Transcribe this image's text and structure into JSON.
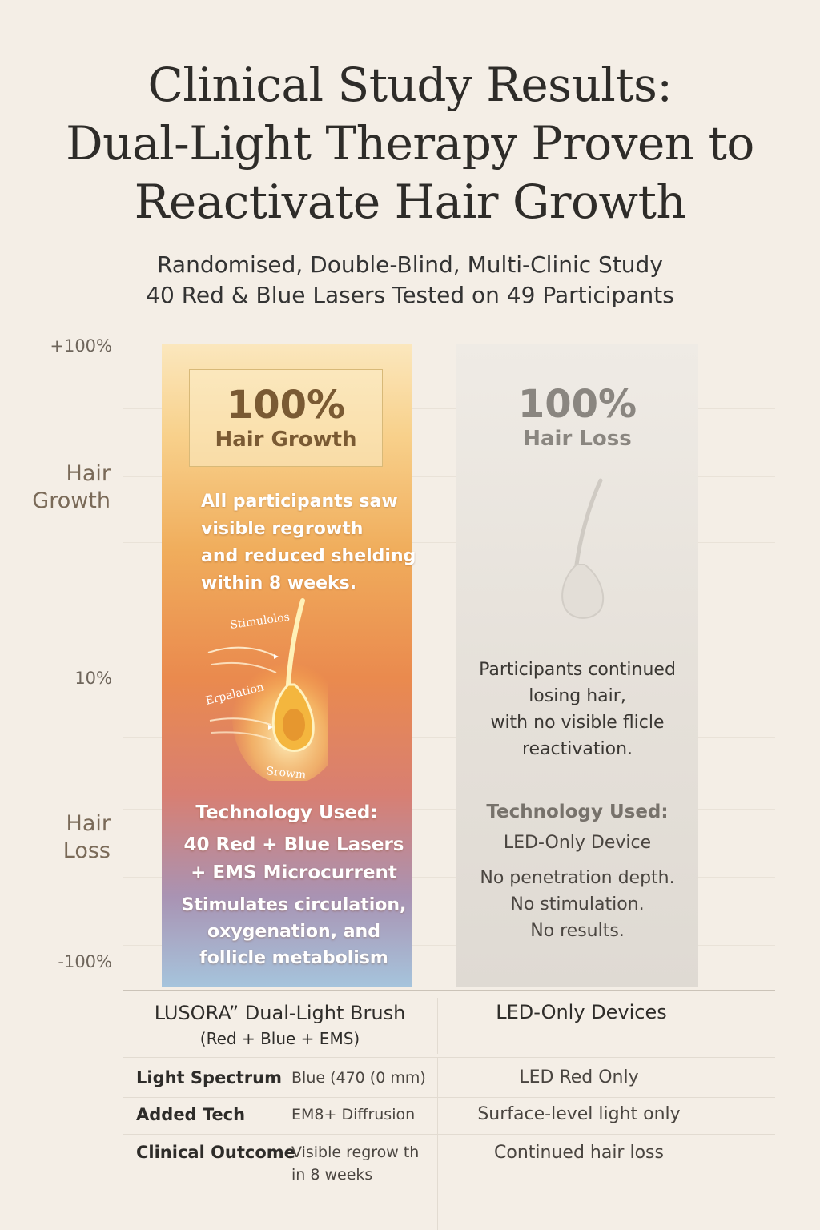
{
  "title": {
    "line1": "Clinical Study Results:",
    "line2": "Dual-Light Therapy Proven to",
    "line3": "Reactivate Hair Growth"
  },
  "subtitle": {
    "line1": "Randomised, Double-Blind, Multi-Clinic Study",
    "line2": "40 Red & Blue Lasers Tested on 49 Participants"
  },
  "chart_data": {
    "type": "bar",
    "y_ticks": [
      "+100%",
      "10%",
      "-100%"
    ],
    "y_side_labels": {
      "top": [
        "Hair",
        "Growth"
      ],
      "bottom": [
        "Hair",
        "Loss"
      ]
    },
    "categories": [
      "LUSORA” Dual-Light Brush",
      "LED-Only Devices"
    ],
    "series": [
      {
        "values": [
          100,
          -100
        ],
        "labels": [
          "100% Hair Growth",
          "100% Hair Loss"
        ]
      }
    ],
    "colors": {
      "growth_top": "#fbe7bd",
      "growth_mid": "#ea8a4e",
      "growth_bottom": "#a6c4dc",
      "loss": "#e6e1da"
    }
  },
  "growth_column": {
    "percent": "100%",
    "caption": "Hair Growth",
    "desc": [
      "All participants saw",
      "visible regrowth",
      "and reduced shelding",
      "within 8 weeks."
    ],
    "illus_labels": [
      "Stimulolos",
      "Erpalation",
      "Srowm"
    ],
    "tech_heading": "Technology Used:",
    "tech": [
      "40 Red + Blue Lasers",
      "+ EMS Microcurrent"
    ],
    "benefit": [
      "Stimulates circulation,",
      "oxygenation, and",
      "follicle metabolism"
    ]
  },
  "loss_column": {
    "percent": "100%",
    "caption": "Hair Loss",
    "desc": [
      "Participants continued",
      "losing hair,",
      "with no visible flicle",
      "reactivation."
    ],
    "tech_heading": "Technology Used:",
    "tech": "LED-Only Device",
    "notes": [
      "No penetration depth.",
      "No stimulation.",
      "No results."
    ]
  },
  "table": {
    "col1_name": "LUSORA” Dual-Light Brush",
    "col1_sub": "(Red + Blue + EMS)",
    "col2_name": "LED-Only Devices",
    "rows": [
      {
        "label": "Light Spectrum",
        "mid": "Blue (470 (0 mm)",
        "right": "LED Red Only"
      },
      {
        "label": "Added Tech",
        "mid": "EM8+ Diffrusion",
        "right": "Surface-level light only"
      },
      {
        "label": "Clinical Outcome",
        "mid1": "Visible regrow th",
        "mid2": "in 8 weeks",
        "right": "Continued hair loss"
      }
    ]
  }
}
